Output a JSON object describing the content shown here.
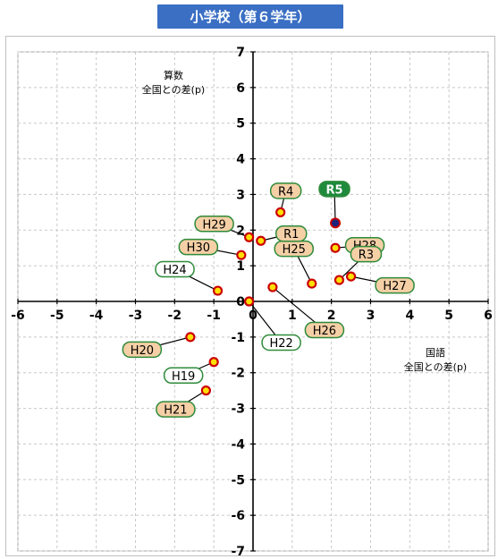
{
  "title": "小学校（第６学年）",
  "chart_data": {
    "type": "scatter",
    "title": "小学校（第６学年）",
    "xlabel": [
      "国語",
      "全国との差(p)"
    ],
    "ylabel": [
      "算数",
      "全国との差(p)"
    ],
    "xlim": [
      -6,
      6
    ],
    "ylim": [
      -7,
      7
    ],
    "xticks": [
      "-6",
      "-5",
      "-4",
      "-3",
      "-2",
      "-1",
      "0",
      "1",
      "2",
      "3",
      "4",
      "5",
      "6"
    ],
    "yticks": [
      "7",
      "6",
      "5",
      "4",
      "3",
      "2",
      "1",
      "0",
      "-1",
      "-2",
      "-3",
      "-4",
      "-5",
      "-6",
      "-7"
    ],
    "grid": true,
    "colors": {
      "point_fill": "#ffe000",
      "point_stroke": "#cc0000",
      "label_fill": "#f5cfa6",
      "label_stroke": "#2e8b3a",
      "latest_fill": "#1f8a3c",
      "latest_point": "#1a237e",
      "title_bg": "#3a6fc4"
    },
    "points": [
      {
        "label": "H19",
        "x": -1.0,
        "y": -1.7,
        "style": "plain"
      },
      {
        "label": "H20",
        "x": -1.6,
        "y": -1.0,
        "style": "tan"
      },
      {
        "label": "H21",
        "x": -1.2,
        "y": -2.5,
        "style": "tan"
      },
      {
        "label": "H22",
        "x": -0.1,
        "y": 0.0,
        "style": "plain"
      },
      {
        "label": "H24",
        "x": -0.9,
        "y": 0.3,
        "style": "plain"
      },
      {
        "label": "H25",
        "x": 1.5,
        "y": 0.5,
        "style": "tan"
      },
      {
        "label": "H26",
        "x": 0.5,
        "y": 0.4,
        "style": "tan"
      },
      {
        "label": "H27",
        "x": 2.5,
        "y": 0.7,
        "style": "tan"
      },
      {
        "label": "H28",
        "x": 2.1,
        "y": 1.5,
        "style": "tan"
      },
      {
        "label": "H29",
        "x": -0.1,
        "y": 1.8,
        "style": "tan"
      },
      {
        "label": "H30",
        "x": -0.3,
        "y": 1.3,
        "style": "tan"
      },
      {
        "label": "R1",
        "x": 0.2,
        "y": 1.7,
        "style": "tan"
      },
      {
        "label": "R3",
        "x": 2.2,
        "y": 0.6,
        "style": "tan"
      },
      {
        "label": "R4",
        "x": 0.7,
        "y": 2.5,
        "style": "tan"
      },
      {
        "label": "R5",
        "x": 2.1,
        "y": 2.2,
        "style": "latest"
      }
    ]
  }
}
